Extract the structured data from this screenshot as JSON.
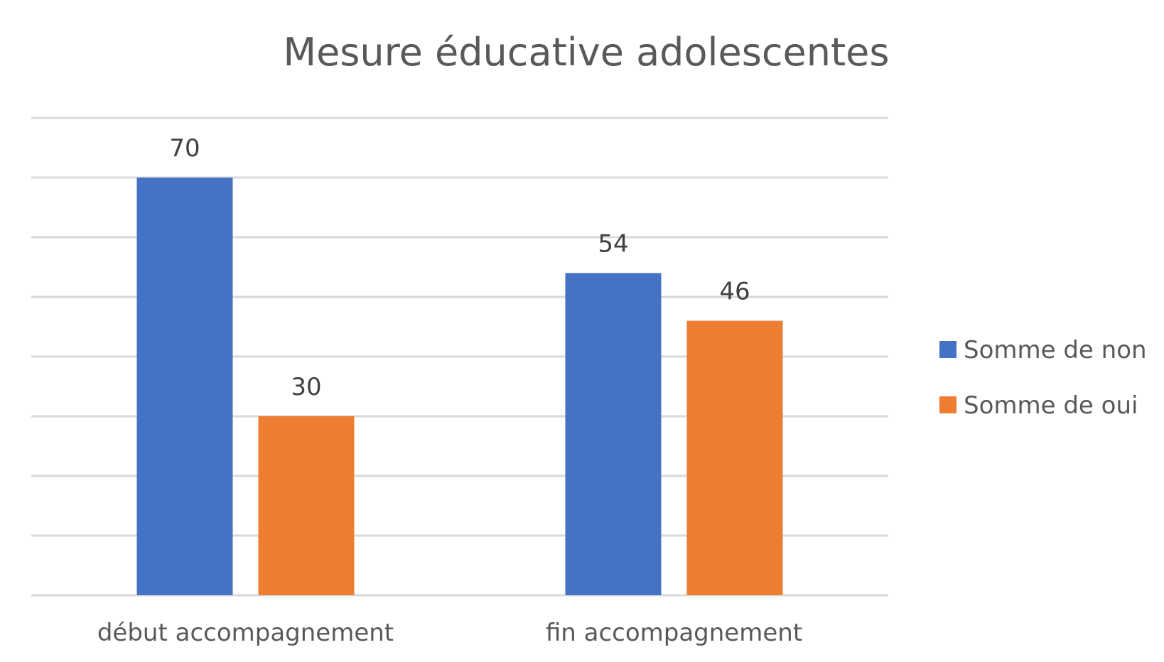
{
  "chart_data": {
    "type": "bar",
    "title": "Mesure éducative adolescentes",
    "categories": [
      "début accompagnement",
      "fin accompagnement"
    ],
    "series": [
      {
        "name": "Somme de non",
        "values": [
          70,
          54
        ],
        "color": "#4472c4"
      },
      {
        "name": "Somme de oui",
        "values": [
          30,
          46
        ],
        "color": "#ed7d31"
      }
    ],
    "ylim": [
      0,
      80
    ],
    "y_major_unit": 10,
    "grid": true,
    "legend_position": "right",
    "show_data_labels": true,
    "y_tick_labels_visible": false
  }
}
